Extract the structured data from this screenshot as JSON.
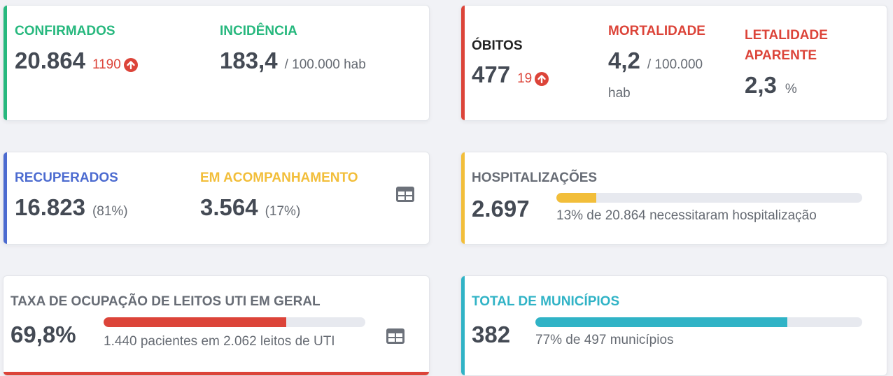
{
  "confirmados": {
    "label": "CONFIRMADOS",
    "value": "20.864",
    "delta": "1190",
    "incidencia_label": "INCIDÊNCIA",
    "incidencia_value": "183,4",
    "incidencia_unit": "/ 100.000 hab"
  },
  "obitos": {
    "label": "ÓBITOS",
    "value": "477",
    "delta": "19",
    "mortalidade_label": "MORTALIDADE",
    "mortalidade_value": "4,2",
    "mortalidade_unit_1": "/ 100.000",
    "mortalidade_unit_2": "hab",
    "letalidade_label_1": "LETALIDADE",
    "letalidade_label_2": "APARENTE",
    "letalidade_value": "2,3",
    "letalidade_unit": "%"
  },
  "recuperados": {
    "label": "RECUPERADOS",
    "value": "16.823",
    "pct": "(81%)",
    "acomp_label": "EM ACOMPANHAMENTO",
    "acomp_value": "3.564",
    "acomp_pct": "(17%)",
    "icon": "table-icon"
  },
  "hospitalizacoes": {
    "label": "HOSPITALIZAÇÕES",
    "value": "2.697",
    "progress": 0.13,
    "caption": "13% de 20.864 necessitaram hospitalização"
  },
  "uti": {
    "label": "TAXA DE OCUPAÇÃO DE LEITOS UTI EM GERAL",
    "value": "69,8%",
    "progress": 0.698,
    "caption": "1.440 pacientes em 2.062 leitos de UTI",
    "icon": "table-icon"
  },
  "municipios": {
    "label": "TOTAL DE MUNICÍPIOS",
    "value": "382",
    "progress": 0.77,
    "caption": "77% de 497 municípios"
  },
  "colors": {
    "green": "#27b87e",
    "red": "#dc4439",
    "blue": "#4c6bd0",
    "yellow": "#f2be3a",
    "teal": "#30b3c6"
  }
}
